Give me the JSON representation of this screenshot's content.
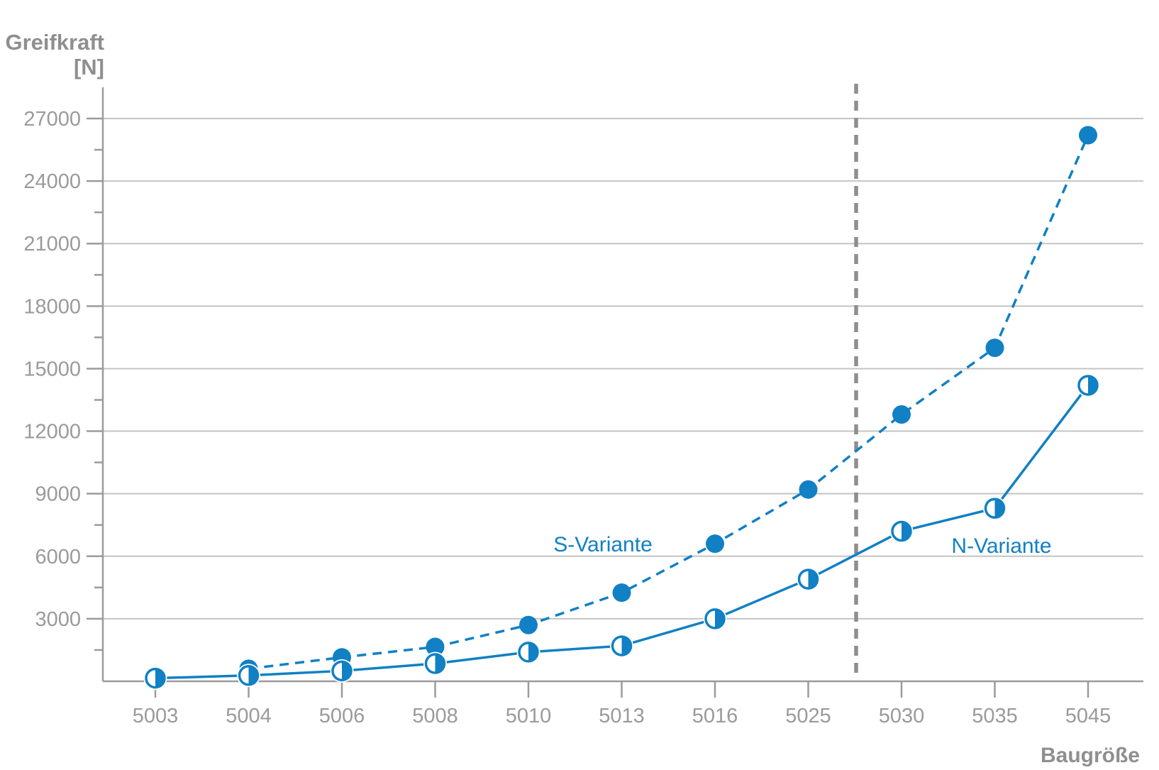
{
  "titles": {
    "y_axis_title_line1": "Greifkraft",
    "y_axis_title_line2": "[N]",
    "x_axis_title": "Baugröße"
  },
  "colors": {
    "accent_blue": "#1180c4",
    "axis_gray": "#9b9b9b",
    "grid_gray": "#c4c4c4",
    "label_gray": "#9a9a9a",
    "title_gray": "#8f8f8f",
    "separator_gray": "#8e8e8e",
    "marker_fill_white": "#ffffff"
  },
  "chart_data": {
    "type": "line",
    "title": "",
    "xlabel": "Baugröße",
    "ylabel": "Greifkraft [N]",
    "categories": [
      "5003",
      "5004",
      "5006",
      "5008",
      "5010",
      "5013",
      "5016",
      "5025",
      "5030",
      "5035",
      "5045"
    ],
    "y_ticks": [
      3000,
      6000,
      9000,
      12000,
      15000,
      18000,
      21000,
      24000,
      27000
    ],
    "y_minor_ticks": [
      1500,
      4500,
      7500,
      10500,
      13500,
      16500,
      19500,
      22500,
      25500
    ],
    "ylim": [
      0,
      28500
    ],
    "grid": "horizontal-major",
    "legend_position": "inline-annotations",
    "separator": {
      "between": [
        "5025",
        "5030"
      ],
      "style": "dashed-vertical-gray"
    },
    "series": [
      {
        "name": "S-Variante",
        "line_style": "dashed",
        "marker": "filled-circle",
        "values": [
          null,
          600,
          1150,
          1650,
          2700,
          4250,
          6600,
          9200,
          12800,
          16000,
          26200
        ]
      },
      {
        "name": "N-Variante",
        "line_style": "solid",
        "marker": "half-filled-circle",
        "values": [
          150,
          280,
          500,
          850,
          1400,
          1700,
          3000,
          4900,
          7200,
          8300,
          14200
        ]
      }
    ]
  }
}
